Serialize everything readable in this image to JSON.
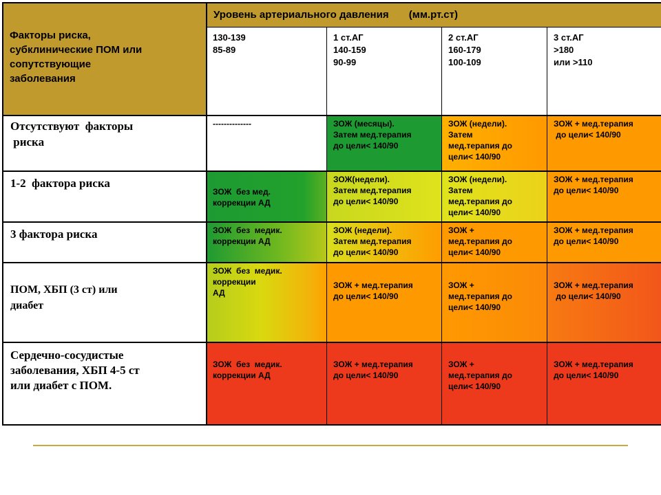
{
  "header": {
    "factor_lines": [
      "Факторы риска,",
      "субклинические ПОМ или",
      "сопутствующие",
      "заболевания"
    ],
    "level_title": "Уровень артериального давления       (мм.рт.ст)"
  },
  "bp_columns": [
    {
      "lines": [
        "130-139",
        "85-89"
      ]
    },
    {
      "lines": [
        "1 ст.АГ",
        "140-159",
        "90-99"
      ]
    },
    {
      "lines": [
        "2 ст.АГ",
        "160-179",
        "100-109"
      ]
    },
    {
      "lines": [
        "3 ст.АГ",
        ">180",
        "или >110"
      ]
    }
  ],
  "rows": [
    {
      "label": [
        "Отсутствуют  факторы",
        " риска"
      ],
      "cells": [
        {
          "lines": [
            "--------------"
          ],
          "color": "#ffffff"
        },
        {
          "lines": [
            "ЗОЖ (месяцы).",
            "Затем мед.терапия",
            "до цели< 140/90"
          ],
          "color": "#1e9a32"
        },
        {
          "lines": [
            "ЗОЖ (недели).",
            "Затем",
            "мед.терапия до",
            "цели< 140/90"
          ],
          "color": "#ff9900"
        },
        {
          "lines": [
            "ЗОЖ + мед.терапия",
            " до цели< 140/90"
          ],
          "color": "#ff9900"
        }
      ]
    },
    {
      "label": [
        "1-2  фактора риска"
      ],
      "cells": [
        {
          "lines": [
            "ЗОЖ  без мед.",
            "коррекции АД"
          ],
          "color": "#1e9a32"
        },
        {
          "lines": [
            "ЗОЖ(недели).",
            "Затем мед.терапия",
            "до цели< 140/90"
          ],
          "color": "#d9e21e"
        },
        {
          "lines": [
            "ЗОЖ (недели).",
            "Затем",
            "мед.терапия до",
            "цели< 140/90"
          ],
          "color": "#d9e21e"
        },
        {
          "lines": [
            "ЗОЖ + мед.терапия",
            "до цели< 140/90"
          ],
          "color": "#ff9900"
        }
      ]
    },
    {
      "label": [
        "3 фактора риска"
      ],
      "cells": [
        {
          "lines": [
            "ЗОЖ  без  медик.",
            "коррекции АД"
          ],
          "color": "#1e9a32"
        },
        {
          "lines": [
            "ЗОЖ (недели).",
            "Затем мед.терапия",
            "до цели< 140/90"
          ],
          "color": "#ff9900"
        },
        {
          "lines": [
            "ЗОЖ +",
            "мед.терапия до",
            "цели< 140/90"
          ],
          "color": "#ff9900"
        },
        {
          "lines": [
            "ЗОЖ + мед.терапия",
            "до цели< 140/90"
          ],
          "color": "#ff9900"
        }
      ]
    },
    {
      "label": [
        "ПОМ, ХБП (3 ст) или",
        "диабет"
      ],
      "cells": [
        {
          "lines": [
            "ЗОЖ  без  медик.",
            "коррекции",
            "АД"
          ],
          "color": "#d9d90f"
        },
        {
          "lines": [
            "ЗОЖ + мед.терапия",
            "до цели< 140/90"
          ],
          "color": "#ff9900"
        },
        {
          "lines": [
            "ЗОЖ +",
            "мед.терапия до",
            "цели< 140/90"
          ],
          "color": "#ff9900"
        },
        {
          "lines": [
            "ЗОЖ + мед.терапия",
            " до цели< 140/90"
          ],
          "color": "#ff9900"
        }
      ]
    },
    {
      "label": [
        "Сердечно-сосудистые",
        "заболевания, ХБП 4-5 ст",
        "или диабет с ПОМ."
      ],
      "cells": [
        {
          "lines": [
            "ЗОЖ  без  медик.",
            "коррекции АД"
          ],
          "color": "#ee3a1c"
        },
        {
          "lines": [
            "ЗОЖ + мед.терапия",
            "до цели< 140/90"
          ],
          "color": "#ee3a1c"
        },
        {
          "lines": [
            "ЗОЖ +",
            "мед.терапия до",
            "цели< 140/90"
          ],
          "color": "#ee3a1c"
        },
        {
          "lines": [
            "ЗОЖ + мед.терапия",
            "до цели< 140/90"
          ],
          "color": "#ee3a1c"
        }
      ]
    }
  ]
}
